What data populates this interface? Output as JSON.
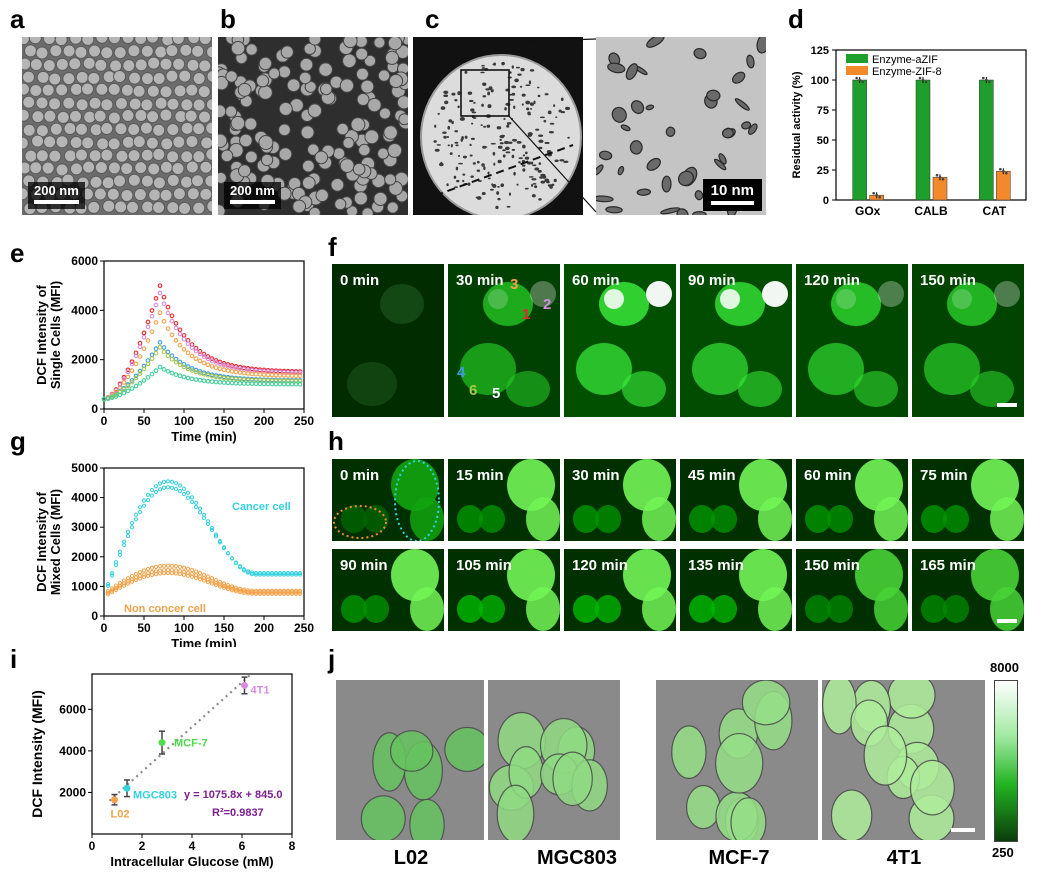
{
  "panels": {
    "a": {
      "label": "a",
      "scale": "200 nm"
    },
    "b": {
      "label": "b",
      "scale": "200 nm"
    },
    "c": {
      "label": "c",
      "scale": "10 nm"
    },
    "d": {
      "label": "d"
    },
    "e": {
      "label": "e"
    },
    "f": {
      "label": "f",
      "times": [
        "0 min",
        "30 min",
        "60 min",
        "90 min",
        "120 min",
        "150 min"
      ],
      "cell_numbers": [
        "1",
        "2",
        "3",
        "4",
        "5",
        "6"
      ]
    },
    "g": {
      "label": "g"
    },
    "h": {
      "label": "h",
      "times": [
        "0 min",
        "15 min",
        "30 min",
        "45 min",
        "60 min",
        "75 min",
        "90 min",
        "105 min",
        "120 min",
        "135 min",
        "150 min",
        "165 min"
      ]
    },
    "i": {
      "label": "i"
    },
    "j": {
      "label": "j",
      "cells": [
        "L02",
        "MGC803",
        "MCF-7",
        "4T1"
      ],
      "colorbar_max": "8000",
      "colorbar_min": "250"
    }
  },
  "chart_data": [
    {
      "id": "d",
      "type": "bar",
      "categories": [
        "GOx",
        "CALB",
        "CAT"
      ],
      "series": [
        {
          "name": "Enzyme-aZIF",
          "values": [
            100,
            100,
            100
          ],
          "color": "#1e9e2a"
        },
        {
          "name": "Enzyme-ZIF-8",
          "values": [
            4,
            19,
            24
          ],
          "color": "#f28a2c"
        }
      ],
      "ylabel": "Residual activity (%)",
      "ylim": [
        0,
        125
      ],
      "yticks": [
        "0",
        "25",
        "50",
        "75",
        "100",
        "125"
      ],
      "legend": "top-right"
    },
    {
      "id": "e",
      "type": "scatter",
      "xlabel": "Time (min)",
      "ylabel": "DCF Intensity of Single Cells (MFI)",
      "xlim": [
        0,
        250
      ],
      "ylim": [
        0,
        6000
      ],
      "xticks": [
        "0",
        "50",
        "100",
        "150",
        "200",
        "250"
      ],
      "yticks": [
        "0",
        "2000",
        "4000",
        "6000"
      ],
      "series": [
        {
          "color": "#e8262a",
          "peak": 5000
        },
        {
          "color": "#d68be0",
          "peak": 4700
        },
        {
          "color": "#f2a24a",
          "peak": 3900
        },
        {
          "color": "#3c9be0",
          "peak": 2700
        },
        {
          "color": "#a8c84a",
          "peak": 2500
        },
        {
          "color": "#3fcf9a",
          "peak": 1700
        }
      ]
    },
    {
      "id": "g",
      "type": "scatter",
      "xlabel": "Time (min)",
      "ylabel": "DCF Intensity of Mixed Cells (MFI)",
      "xlim": [
        0,
        250
      ],
      "ylim": [
        0,
        5000
      ],
      "xticks": [
        "0",
        "50",
        "100",
        "150",
        "200",
        "250"
      ],
      "yticks": [
        "0",
        "1000",
        "2000",
        "3000",
        "4000",
        "5000"
      ],
      "annotations": [
        {
          "text": "Cancer cell",
          "color": "#33d1dc"
        },
        {
          "text": "Non concer cell",
          "color": "#f2a24a"
        }
      ]
    },
    {
      "id": "i",
      "type": "scatter",
      "xlabel": "Intracellular Glucose (mM)",
      "ylabel": "DCF Intensity (MFI)",
      "xlim": [
        0,
        8
      ],
      "ylim": [
        0,
        7700
      ],
      "xticks": [
        "0",
        "2",
        "4",
        "6",
        "8"
      ],
      "yticks": [
        "2000",
        "4000",
        "6000"
      ],
      "points": [
        {
          "name": "L02",
          "x": 0.9,
          "y": 1650,
          "err": 250,
          "color": "#f2a24a"
        },
        {
          "name": "MGC803",
          "x": 1.4,
          "y": 2200,
          "err": 400,
          "color": "#33d1dc"
        },
        {
          "name": "MCF-7",
          "x": 2.8,
          "y": 4400,
          "err": 550,
          "color": "#4ddc4d"
        },
        {
          "name": "4T1",
          "x": 6.1,
          "y": 7150,
          "err": 400,
          "color": "#d68be0"
        }
      ],
      "fit": {
        "equation": "y = 1075.8x + 845.0",
        "r2": "R²=0.9837",
        "slope": 1075.8,
        "intercept": 845.0,
        "color": "#7a1e8e"
      }
    }
  ]
}
